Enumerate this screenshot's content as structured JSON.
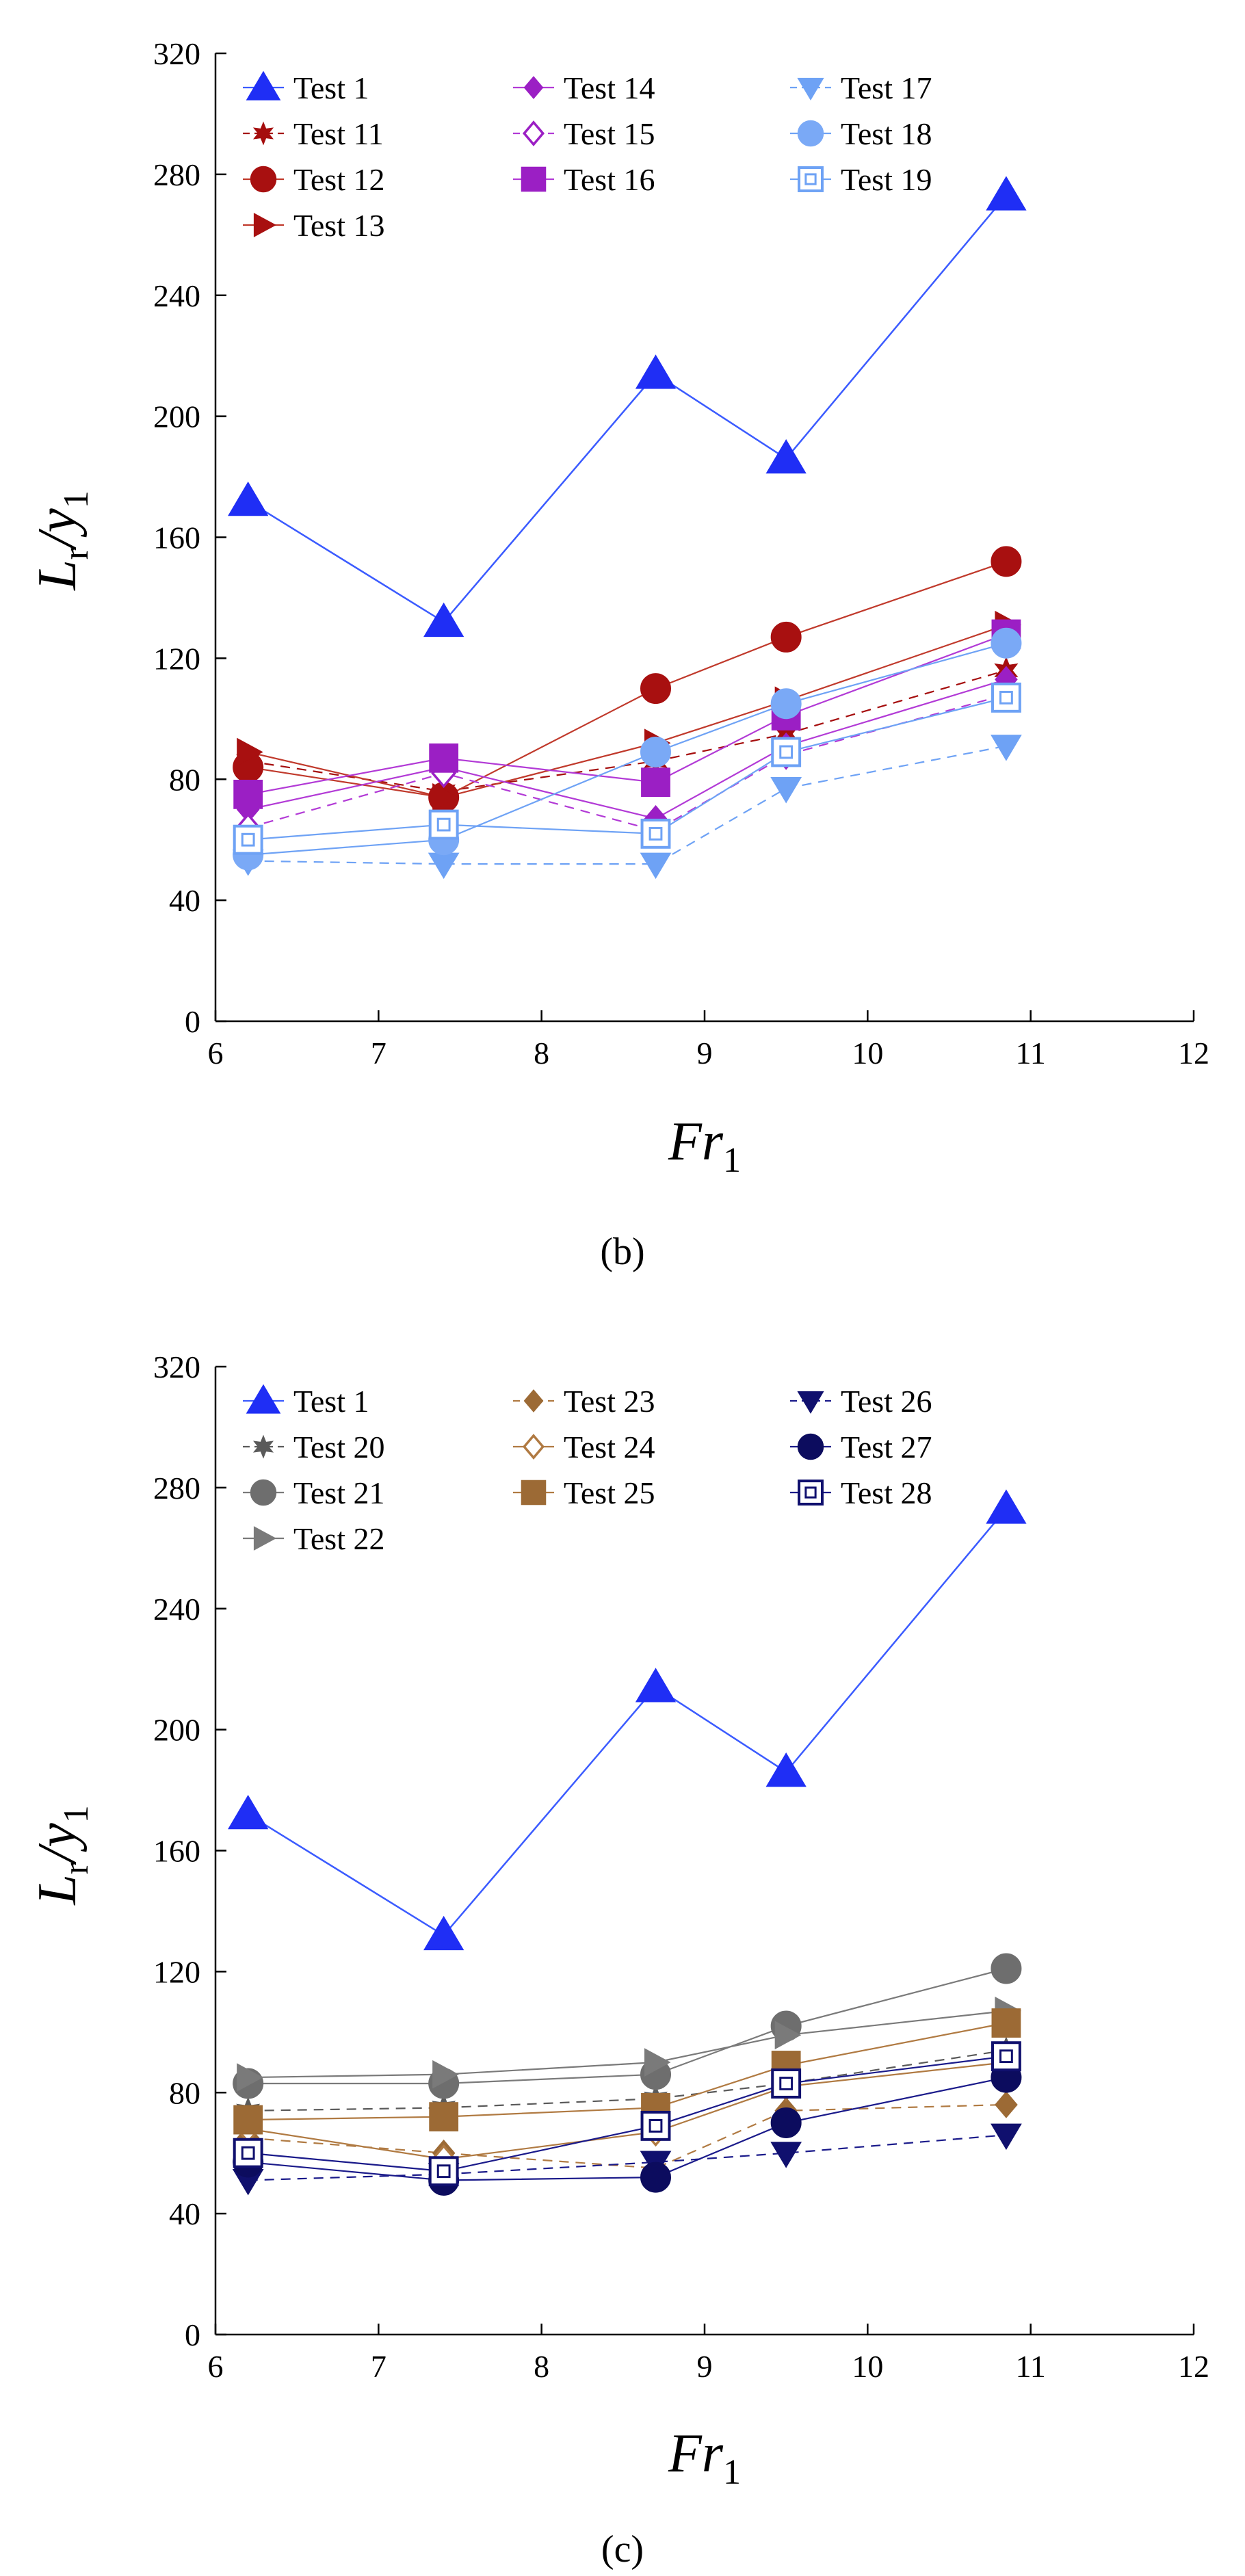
{
  "figure": {
    "background": "#ffffff"
  },
  "chart_data": [
    {
      "id": "b",
      "panel_label": "(b)",
      "type": "line",
      "xlabel": "Fr",
      "xlabel_sub": "1",
      "ylabel": "L",
      "ylabel_sub_r": "r",
      "ylabel_slash": "/y",
      "ylabel_sub_1": "1",
      "xlim": [
        6,
        12
      ],
      "ylim": [
        0,
        320
      ],
      "xticks": [
        6,
        7,
        8,
        9,
        10,
        11,
        12
      ],
      "yticks": [
        0,
        40,
        80,
        120,
        160,
        200,
        240,
        280,
        320
      ],
      "grid": false,
      "legend": {
        "placement": "top-left",
        "columns": [
          [
            "Test 1",
            "Test 11",
            "Test 12",
            "Test 13"
          ],
          [
            "Test 14",
            "Test 15",
            "Test 16"
          ],
          [
            "Test 17",
            "Test 18",
            "Test 19"
          ]
        ]
      },
      "x": [
        6.2,
        7.4,
        8.7,
        9.5,
        10.85
      ],
      "series": [
        {
          "name": "Test 1",
          "values": [
            172,
            132,
            214,
            186,
            273
          ],
          "color": "#1f2ef5",
          "line_color": "#3b5bff",
          "marker": "triangle-up",
          "filled": true,
          "dash": "solid",
          "size": 1.25
        },
        {
          "name": "Test 11",
          "values": [
            86,
            76,
            86,
            95,
            116
          ],
          "color": "#a50d0d",
          "line_color": "#a50d0d",
          "marker": "star",
          "filled": true,
          "dash": "dashed",
          "size": 0.9
        },
        {
          "name": "Test 12",
          "values": [
            84,
            74,
            110,
            127,
            152
          ],
          "color": "#a81010",
          "line_color": "#c0392b",
          "marker": "circle",
          "filled": true,
          "dash": "solid",
          "size": 1.1
        },
        {
          "name": "Test 13",
          "values": [
            89,
            74,
            92,
            106,
            131
          ],
          "color": "#a81010",
          "line_color": "#c0392b",
          "marker": "triangle-right",
          "filled": true,
          "dash": "solid",
          "size": 1.0
        },
        {
          "name": "Test 14",
          "values": [
            70,
            84,
            67,
            91,
            113
          ],
          "color": "#9b1fc4",
          "line_color": "#b23ad6",
          "marker": "diamond",
          "filled": true,
          "dash": "solid",
          "size": 0.95
        },
        {
          "name": "Test 15",
          "values": [
            64,
            82,
            63,
            88,
            108
          ],
          "color": "#9b1fc4",
          "line_color": "#b23ad6",
          "marker": "diamond",
          "filled": false,
          "dash": "dashed",
          "size": 0.95
        },
        {
          "name": "Test 16",
          "values": [
            75,
            87,
            79,
            101,
            128
          ],
          "color": "#9b1fc4",
          "line_color": "#b23ad6",
          "marker": "square",
          "filled": true,
          "dash": "solid",
          "size": 1.1
        },
        {
          "name": "Test 17",
          "values": [
            53,
            52,
            52,
            77,
            91
          ],
          "color": "#6ea2f5",
          "line_color": "#6ea2f5",
          "marker": "triangle-down",
          "filled": true,
          "dash": "dashed",
          "size": 1.0
        },
        {
          "name": "Test 18",
          "values": [
            55,
            60,
            89,
            105,
            125
          ],
          "color": "#7aa9f6",
          "line_color": "#6ea2f5",
          "marker": "circle",
          "filled": true,
          "dash": "solid",
          "size": 1.1
        },
        {
          "name": "Test 19",
          "values": [
            60,
            65,
            62,
            89,
            107
          ],
          "color": "#6ea2f5",
          "line_color": "#6ea2f5",
          "marker": "square-open",
          "filled": false,
          "dash": "solid",
          "size": 1.05
        }
      ]
    },
    {
      "id": "c",
      "panel_label": "(c)",
      "type": "line",
      "xlabel": "Fr",
      "xlabel_sub": "1",
      "ylabel": "L",
      "ylabel_sub_r": "r",
      "ylabel_slash": "/y",
      "ylabel_sub_1": "1",
      "xlim": [
        6,
        12
      ],
      "ylim": [
        0,
        320
      ],
      "xticks": [
        6,
        7,
        8,
        9,
        10,
        11,
        12
      ],
      "yticks": [
        0,
        40,
        80,
        120,
        160,
        200,
        240,
        280,
        320
      ],
      "grid": false,
      "legend": {
        "placement": "top-left",
        "columns": [
          [
            "Test 1",
            "Test 20",
            "Test 21",
            "Test 22"
          ],
          [
            "Test 23",
            "Test 24",
            "Test 25"
          ],
          [
            "Test 26",
            "Test 27",
            "Test 28"
          ]
        ]
      },
      "x": [
        6.2,
        7.4,
        8.7,
        9.5,
        10.85
      ],
      "series": [
        {
          "name": "Test 1",
          "values": [
            172,
            132,
            214,
            186,
            273
          ],
          "color": "#1f2ef5",
          "line_color": "#3b5bff",
          "marker": "triangle-up",
          "filled": true,
          "dash": "solid",
          "size": 1.25
        },
        {
          "name": "Test 20",
          "values": [
            74,
            75,
            78,
            83,
            94
          ],
          "color": "#5a5a5a",
          "line_color": "#5a5a5a",
          "marker": "star",
          "filled": true,
          "dash": "dashed",
          "size": 0.9
        },
        {
          "name": "Test 21",
          "values": [
            83,
            83,
            86,
            102,
            121
          ],
          "color": "#6e6e6e",
          "line_color": "#7a7a7a",
          "marker": "circle",
          "filled": true,
          "dash": "solid",
          "size": 1.1
        },
        {
          "name": "Test 22",
          "values": [
            85,
            86,
            90,
            99,
            107
          ],
          "color": "#7a7a7a",
          "line_color": "#7a7a7a",
          "marker": "triangle-right",
          "filled": true,
          "dash": "solid",
          "size": 1.0
        },
        {
          "name": "Test 23",
          "values": [
            65,
            60,
            55,
            74,
            76
          ],
          "color": "#9c6a35",
          "line_color": "#b07a42",
          "marker": "diamond",
          "filled": true,
          "dash": "dashed",
          "size": 0.95
        },
        {
          "name": "Test 24",
          "values": [
            68,
            58,
            67,
            82,
            90
          ],
          "color": "#b07a42",
          "line_color": "#b07a42",
          "marker": "diamond",
          "filled": false,
          "dash": "solid",
          "size": 0.95
        },
        {
          "name": "Test 25",
          "values": [
            71,
            72,
            75,
            89,
            103
          ],
          "color": "#9c6a35",
          "line_color": "#b07a42",
          "marker": "square",
          "filled": true,
          "dash": "solid",
          "size": 1.1
        },
        {
          "name": "Test 26",
          "values": [
            51,
            53,
            57,
            60,
            66
          ],
          "color": "#10106e",
          "line_color": "#1a1a8a",
          "marker": "triangle-down",
          "filled": true,
          "dash": "dashed",
          "size": 1.0
        },
        {
          "name": "Test 27",
          "values": [
            57,
            51,
            52,
            70,
            85
          ],
          "color": "#0c0c5e",
          "line_color": "#1a1a8a",
          "marker": "circle",
          "filled": true,
          "dash": "solid",
          "size": 1.1
        },
        {
          "name": "Test 28",
          "values": [
            60,
            54,
            69,
            83,
            92
          ],
          "color": "#10106e",
          "line_color": "#1a1a8a",
          "marker": "square-open",
          "filled": false,
          "dash": "solid",
          "size": 1.05
        }
      ]
    }
  ]
}
